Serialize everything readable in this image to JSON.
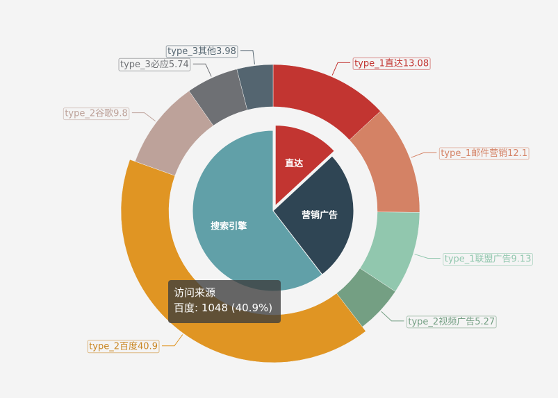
{
  "chart_data": {
    "type": "pie",
    "variant": "nested donut",
    "inner_ring": {
      "slices": [
        {
          "name": "直达",
          "value": 13.08,
          "color": "#c23531",
          "selected": true
        },
        {
          "name": "营销广告",
          "value": 26.5,
          "color": "#2f4554"
        },
        {
          "name": "搜索引擎",
          "value": 60.42,
          "color": "#61a0a8"
        }
      ]
    },
    "outer_ring": {
      "slices": [
        {
          "name": "type_1直达",
          "value": 13.08,
          "label": "type_1直达13.08",
          "color": "#c23531",
          "label_color": "#c23531"
        },
        {
          "name": "type_1邮件营销",
          "value": 12.1,
          "label": "type_1邮件营销12.1",
          "color": "#d48265",
          "label_color": "#d48265"
        },
        {
          "name": "type_1联盟广告",
          "value": 9.13,
          "label": "type_1联盟广告9.13",
          "color": "#91c7ae",
          "label_color": "#91c7ae"
        },
        {
          "name": "type_2视频广告",
          "value": 5.27,
          "label": "type_2视频广告5.27",
          "color": "#749f83",
          "label_color": "#749f83"
        },
        {
          "name": "type_2百度",
          "value": 40.9,
          "label": "type_2百度40.9",
          "color": "#e09523",
          "label_color": "#ca8622"
        },
        {
          "name": "type_2谷歌",
          "value": 9.8,
          "label": "type_2谷歌9.8",
          "color": "#bda29a",
          "label_color": "#bda29a"
        },
        {
          "name": "type_3必应",
          "value": 5.74,
          "label": "type_3必应5.74",
          "color": "#6e7074",
          "label_color": "#6e7074"
        },
        {
          "name": "type_3其他",
          "value": 3.98,
          "label": "type_3其他3.98",
          "color": "#546570",
          "label_color": "#546570"
        }
      ]
    }
  },
  "tooltip": {
    "title": "访问来源",
    "line": "百度: 1048 (40.9%)"
  }
}
